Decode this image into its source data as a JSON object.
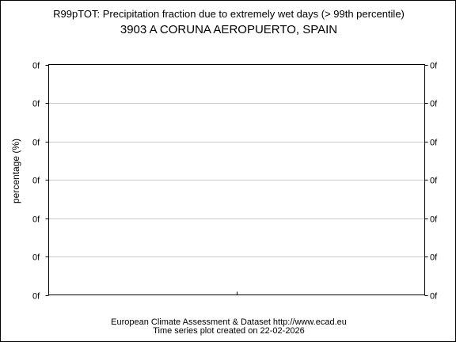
{
  "chart_data": {
    "type": "line",
    "title": "R99pTOT: Precipitation fraction due to extremely wet days (> 99th percentile)",
    "subtitle": "3903 A CORUNA AEROPUERTO, SPAIN",
    "ylabel": "percentage (%)",
    "xlabel": "",
    "y_tick_labels": [
      "0f",
      "0f",
      "0f",
      "0f",
      "0f",
      "0f",
      "0f"
    ],
    "x_tick_labels": [],
    "grid": true,
    "series": []
  },
  "footer": {
    "line1": "European Climate Assessment & Dataset  http://www.ecad.eu",
    "line2": "Time series plot created on 22-02-2026"
  }
}
